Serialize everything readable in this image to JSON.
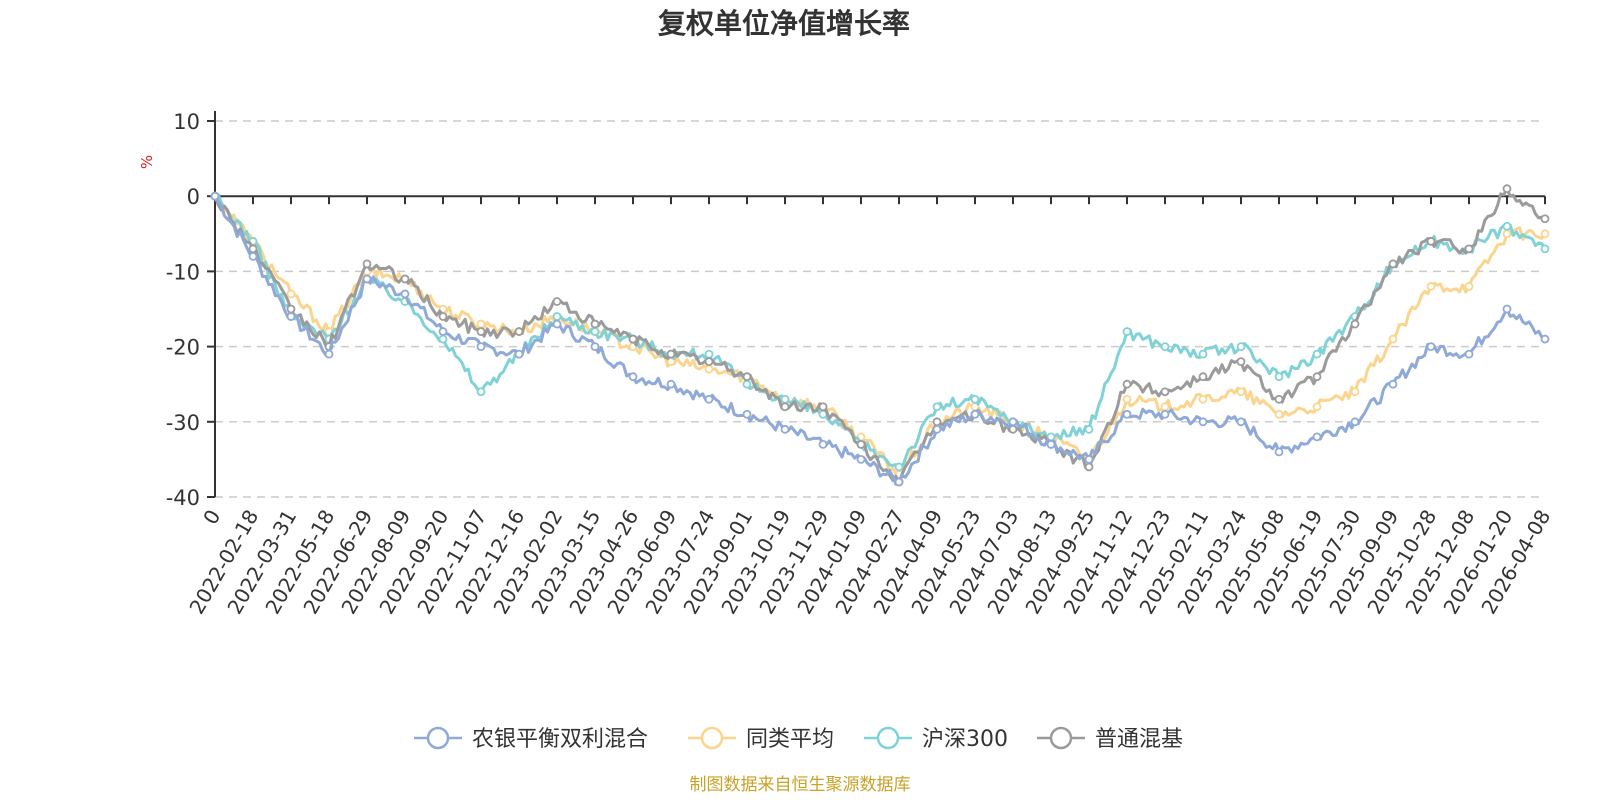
{
  "chart_data": {
    "type": "line",
    "title": "复权单位净值增长率",
    "ylabel": "%",
    "ylim": [
      -40,
      10
    ],
    "yticks": [
      10,
      0,
      -10,
      -20,
      -30,
      -40
    ],
    "grid": true,
    "legend_position": "bottom",
    "source_note": "制图数据来自恒生聚源数据库",
    "x": [
      "0",
      "2022-02-18",
      "2022-03-31",
      "2022-05-18",
      "2022-06-29",
      "2022-08-09",
      "2022-09-20",
      "2022-11-07",
      "2022-12-16",
      "2023-02-02",
      "2023-03-15",
      "2023-04-26",
      "2023-06-09",
      "2023-07-24",
      "2023-09-01",
      "2023-10-19",
      "2023-11-29",
      "2024-01-09",
      "2024-02-27",
      "2024-04-09",
      "2024-05-23",
      "2024-07-03",
      "2024-08-13",
      "2024-09-25",
      "2024-11-12",
      "2024-12-23",
      "2025-02-11",
      "2025-03-24",
      "2025-05-08",
      "2025-06-19",
      "2025-07-30",
      "2025-09-09",
      "2025-10-28",
      "2025-12-08",
      "2026-01-20",
      "2026-04-08"
    ],
    "series": [
      {
        "name": "农银平衡双利混合",
        "color": "#8fa9d8",
        "values": [
          0,
          -8,
          -16,
          -21,
          -11,
          -13,
          -18,
          -20,
          -21,
          -17,
          -20,
          -24,
          -25,
          -27,
          -29,
          -31,
          -33,
          -35,
          -38,
          -31,
          -29,
          -30,
          -33,
          -35,
          -29,
          -29,
          -30,
          -30,
          -34,
          -32,
          -30,
          -25,
          -20,
          -21,
          -15,
          -19
        ]
      },
      {
        "name": "同类平均",
        "color": "#fbd48e",
        "values": [
          0,
          -6,
          -13,
          -18,
          -10,
          -11,
          -15,
          -17,
          -18,
          -16,
          -18,
          -20,
          -22,
          -23,
          -24,
          -27,
          -28,
          -32,
          -37,
          -30,
          -28,
          -30,
          -32,
          -35,
          -27,
          -28,
          -27,
          -26,
          -29,
          -28,
          -26,
          -19,
          -12,
          -12,
          -5,
          -5
        ]
      },
      {
        "name": "沪深300",
        "color": "#80d2d6",
        "values": [
          0,
          -6,
          -16,
          -19,
          -11,
          -14,
          -19,
          -26,
          -21,
          -16,
          -18,
          -19,
          -21,
          -21,
          -25,
          -27,
          -29,
          -33,
          -36,
          -28,
          -27,
          -30,
          -32,
          -31,
          -18,
          -20,
          -21,
          -20,
          -24,
          -21,
          -16,
          -9,
          -6,
          -7,
          -4,
          -7
        ]
      },
      {
        "name": "普通混基",
        "color": "#9b9b9b",
        "values": [
          0,
          -7,
          -15,
          -20,
          -9,
          -11,
          -16,
          -18,
          -18,
          -14,
          -17,
          -19,
          -21,
          -22,
          -24,
          -28,
          -28,
          -33,
          -38,
          -30,
          -29,
          -31,
          -33,
          -36,
          -25,
          -26,
          -24,
          -22,
          -27,
          -24,
          -17,
          -9,
          -6,
          -7,
          1,
          -3
        ]
      }
    ]
  }
}
